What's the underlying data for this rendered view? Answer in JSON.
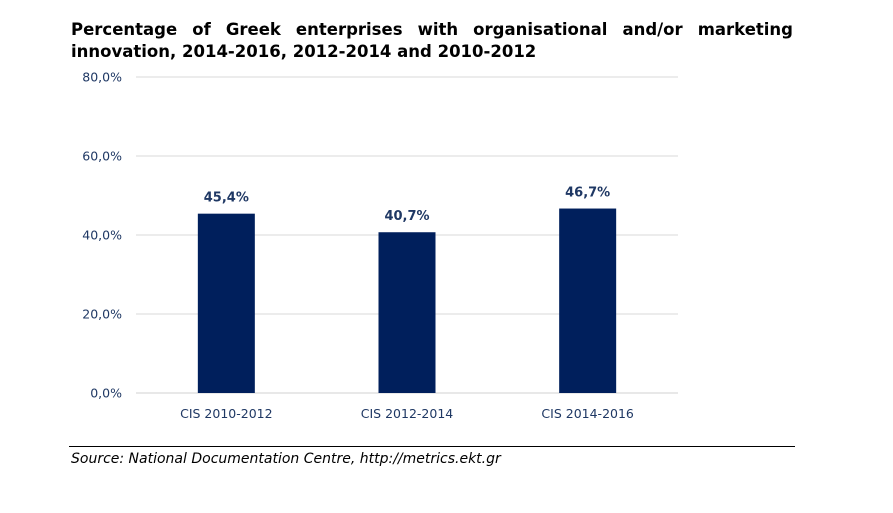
{
  "chart_data": {
    "type": "bar",
    "title": "Percentage of Greek enterprises with organisational and/or marketing innovation, 2014-2016, 2012-2014 and 2010-2012",
    "xlabel": "",
    "ylabel": "",
    "categories": [
      "CIS 2010-2012",
      "CIS 2012-2014",
      "CIS 2014-2016"
    ],
    "values": [
      45.4,
      40.7,
      46.7
    ],
    "data_labels": [
      "45,4%",
      "40,7%",
      "46,7%"
    ],
    "ylim": [
      0,
      80
    ],
    "yticks": [
      0,
      20,
      40,
      60,
      80
    ],
    "ytick_labels": [
      "0,0%",
      "20,0%",
      "40,0%",
      "60,0%",
      "80,0%"
    ],
    "grid": true,
    "legend": "none",
    "bar_color": "#001f5c",
    "label_color": "#1f3864"
  },
  "source": "Source: National Documentation Centre, http://metrics.ekt.gr"
}
